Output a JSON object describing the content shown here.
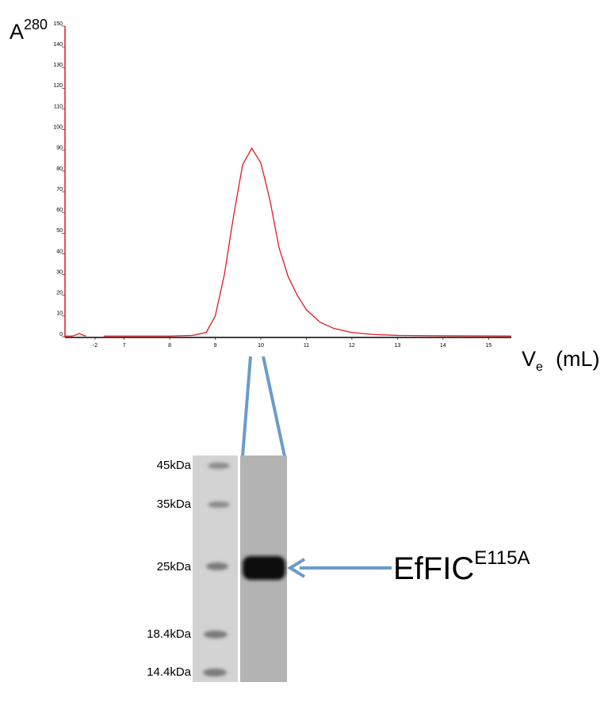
{
  "chart_data": {
    "type": "line",
    "y_label": "A",
    "y_label_sup": "280",
    "x_label": "V",
    "x_label_sub": "e",
    "x_label_unit": "(mL)",
    "x": [
      -2.66,
      -2.5,
      -2.4,
      -2.35,
      -2.3,
      -2.2,
      -1.95,
      6.55,
      8.0,
      8.5,
      8.8,
      9.0,
      9.2,
      9.4,
      9.6,
      9.8,
      10.0,
      10.2,
      10.4,
      10.6,
      10.8,
      11.0,
      11.3,
      11.6,
      12.0,
      12.5,
      13.0,
      14.0,
      15.5
    ],
    "values": [
      0.3,
      0.3,
      1,
      1.6,
      1,
      0.3,
      null,
      0.3,
      0.3,
      0.6,
      2,
      10,
      30,
      58,
      83,
      91,
      84,
      66,
      43,
      29,
      20,
      13,
      7,
      4,
      2,
      1,
      0.6,
      0.4,
      0.3
    ],
    "color": "#e0191e",
    "xlim": [
      -2.66,
      15.5
    ],
    "xbreak": [
      -1.95,
      6.55
    ],
    "xticks": [
      -2,
      7,
      8,
      9,
      10,
      11,
      12,
      13,
      14,
      15
    ],
    "ylim": [
      0,
      150
    ],
    "yticks": [
      0,
      10,
      20,
      30,
      40,
      50,
      60,
      70,
      80,
      90,
      100,
      110,
      120,
      130,
      140,
      150
    ]
  },
  "gel": {
    "markers": [
      "45kDa",
      "35kDa",
      "25kDa",
      "18.4kDa",
      "14.4kDa"
    ],
    "band_label": "EfFIC",
    "band_label_sup": "E115A"
  }
}
